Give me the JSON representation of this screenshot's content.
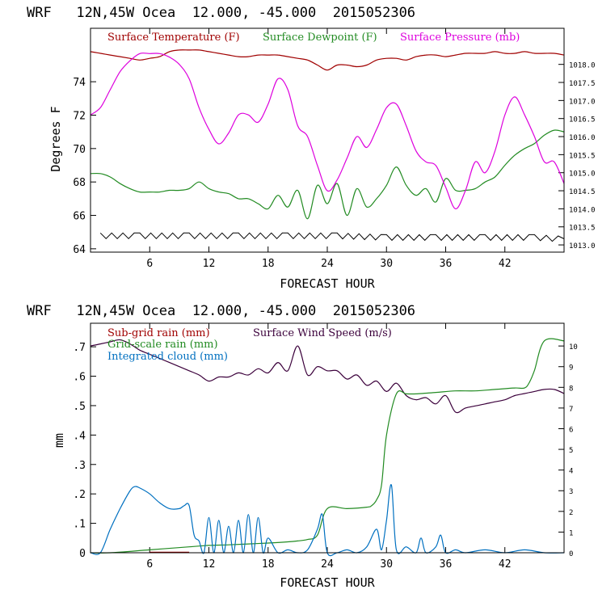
{
  "chart_data": [
    {
      "type": "line",
      "title": "WRF   12N,45W Ocea  12.000, -45.000  2015052306",
      "xlabel": "FORECAST HOUR",
      "ylabel": "Degrees F",
      "xlim": [
        0,
        48
      ],
      "ylim": [
        63.8,
        77.2
      ],
      "y2lim": [
        1012.8,
        1019.0
      ],
      "x_ticks": [
        6,
        12,
        18,
        24,
        30,
        36,
        42
      ],
      "y_ticks": [
        64,
        66,
        68,
        70,
        72,
        74
      ],
      "y2_ticks": [
        "1013.0",
        "1013.5",
        "1014.0",
        "1014.5",
        "1015.0",
        "1015.5",
        "1016.0",
        "1016.5",
        "1017.0",
        "1017.5",
        "1018.0"
      ],
      "legend": [
        "Surface Temperature (F)",
        "Surface Dewpoint (F)",
        "Surface Pressure (mb)"
      ],
      "series": [
        {
          "name": "Surface Temperature (F)",
          "color": "#a00000",
          "axis": "left",
          "x": [
            0,
            1,
            2,
            3,
            4,
            5,
            6,
            7,
            8,
            9,
            10,
            11,
            12,
            13,
            14,
            15,
            16,
            17,
            18,
            19,
            20,
            21,
            22,
            23,
            24,
            25,
            26,
            27,
            28,
            29,
            30,
            31,
            32,
            33,
            34,
            35,
            36,
            37,
            38,
            39,
            40,
            41,
            42,
            43,
            44,
            45,
            46,
            47,
            48
          ],
          "y": [
            75.8,
            75.7,
            75.6,
            75.5,
            75.4,
            75.3,
            75.4,
            75.5,
            75.8,
            75.9,
            75.9,
            75.9,
            75.8,
            75.7,
            75.6,
            75.5,
            75.5,
            75.6,
            75.6,
            75.6,
            75.5,
            75.4,
            75.3,
            75.0,
            74.7,
            75.0,
            75.0,
            74.9,
            75.0,
            75.3,
            75.4,
            75.4,
            75.3,
            75.5,
            75.6,
            75.6,
            75.5,
            75.6,
            75.7,
            75.7,
            75.7,
            75.8,
            75.7,
            75.7,
            75.8,
            75.7,
            75.7,
            75.7,
            75.6
          ]
        },
        {
          "name": "Surface Dewpoint (F)",
          "color": "#228b22",
          "axis": "left",
          "x": [
            0,
            1,
            2,
            3,
            4,
            5,
            6,
            7,
            8,
            9,
            10,
            11,
            12,
            13,
            14,
            15,
            16,
            17,
            18,
            19,
            20,
            21,
            22,
            23,
            24,
            25,
            26,
            27,
            28,
            29,
            30,
            31,
            32,
            33,
            34,
            35,
            36,
            37,
            38,
            39,
            40,
            41,
            42,
            43,
            44,
            45,
            46,
            47,
            48
          ],
          "y": [
            68.5,
            68.5,
            68.3,
            67.9,
            67.6,
            67.4,
            67.4,
            67.4,
            67.5,
            67.5,
            67.6,
            68.0,
            67.6,
            67.4,
            67.3,
            67.0,
            67.0,
            66.7,
            66.4,
            67.2,
            66.5,
            67.5,
            65.8,
            67.8,
            66.7,
            67.9,
            66.0,
            67.6,
            66.5,
            67.0,
            67.8,
            68.9,
            67.8,
            67.2,
            67.6,
            66.8,
            68.2,
            67.5,
            67.5,
            67.6,
            68.0,
            68.3,
            69.0,
            69.6,
            70.0,
            70.3,
            70.8,
            71.1,
            71.0
          ]
        },
        {
          "name": "Surface Pressure (mb)",
          "color": "#dd00dd",
          "axis": "right",
          "x": [
            0,
            1,
            2,
            3,
            4,
            5,
            6,
            7,
            8,
            9,
            10,
            11,
            12,
            13,
            14,
            15,
            16,
            17,
            18,
            19,
            20,
            21,
            22,
            23,
            24,
            25,
            26,
            27,
            28,
            29,
            30,
            31,
            32,
            33,
            34,
            35,
            36,
            37,
            38,
            39,
            40,
            41,
            42,
            43,
            44,
            45,
            46,
            47,
            48
          ],
          "y": [
            1016.6,
            1016.8,
            1017.3,
            1017.8,
            1018.1,
            1018.3,
            1018.3,
            1018.3,
            1018.2,
            1018.0,
            1017.6,
            1016.8,
            1016.2,
            1015.8,
            1016.1,
            1016.6,
            1016.6,
            1016.4,
            1016.9,
            1017.6,
            1017.3,
            1016.3,
            1016.0,
            1015.2,
            1014.5,
            1014.8,
            1015.4,
            1016.0,
            1015.7,
            1016.2,
            1016.8,
            1016.9,
            1016.3,
            1015.6,
            1015.3,
            1015.2,
            1014.6,
            1014.0,
            1014.5,
            1015.3,
            1015.0,
            1015.6,
            1016.6,
            1017.1,
            1016.6,
            1016.0,
            1015.3,
            1015.3,
            1014.7
          ]
        },
        {
          "name": "",
          "color": "#000000",
          "axis": "left",
          "style": "zigzag",
          "x": [
            1,
            5,
            10,
            15,
            20,
            25,
            30,
            35,
            40,
            45,
            48
          ],
          "y": [
            64.8,
            64.8,
            64.8,
            64.8,
            64.8,
            64.8,
            64.7,
            64.7,
            64.7,
            64.7,
            64.6
          ]
        }
      ]
    },
    {
      "type": "line",
      "title": "WRF   12N,45W Ocea  12.000, -45.000  2015052306",
      "xlabel": "FORECAST HOUR",
      "ylabel": "mm",
      "xlim": [
        0,
        48
      ],
      "ylim": [
        0,
        0.78
      ],
      "y2lim": [
        0,
        11.1
      ],
      "x_ticks": [
        6,
        12,
        18,
        24,
        30,
        36,
        42
      ],
      "y_ticks": [
        0,
        0.1,
        0.2,
        0.3,
        0.4,
        0.5,
        0.6,
        0.7
      ],
      "y_tick_labels": [
        "0",
        ".1",
        ".2",
        ".3",
        ".4",
        ".5",
        ".6",
        ".7"
      ],
      "y2_ticks": [
        0,
        1,
        2,
        3,
        4,
        5,
        6,
        7,
        8,
        9,
        10
      ],
      "legend": [
        "Sub-grid rain (mm)",
        "Surface Wind Speed (m/s)",
        "Grid-scale rain (mm)",
        "Integrated cloud (mm)"
      ],
      "series": [
        {
          "name": "Sub-grid rain (mm)",
          "color": "#a00000",
          "axis": "left",
          "x": [
            6,
            10
          ],
          "y": [
            0.002,
            0.002
          ]
        },
        {
          "name": "Surface Wind Speed (m/s)",
          "color": "#3b003b",
          "axis": "right",
          "x": [
            0,
            1,
            2,
            3,
            4,
            5,
            6,
            7,
            8,
            9,
            10,
            11,
            12,
            13,
            14,
            15,
            16,
            17,
            18,
            19,
            20,
            21,
            22,
            23,
            24,
            25,
            26,
            27,
            28,
            29,
            30,
            31,
            32,
            33,
            34,
            35,
            36,
            37,
            38,
            39,
            40,
            41,
            42,
            43,
            44,
            45,
            46,
            47,
            48
          ],
          "y": [
            10.0,
            10.1,
            10.2,
            10.3,
            10.1,
            9.8,
            9.6,
            9.4,
            9.2,
            9.0,
            8.8,
            8.6,
            8.3,
            8.5,
            8.5,
            8.7,
            8.6,
            8.9,
            8.7,
            9.2,
            8.8,
            10.0,
            8.6,
            9.0,
            8.8,
            8.8,
            8.4,
            8.6,
            8.1,
            8.3,
            7.8,
            8.2,
            7.6,
            7.4,
            7.5,
            7.2,
            7.6,
            6.8,
            7.0,
            7.1,
            7.2,
            7.3,
            7.4,
            7.6,
            7.7,
            7.8,
            7.9,
            7.9,
            7.7
          ]
        },
        {
          "name": "Grid-scale rain (mm)",
          "color": "#228b22",
          "axis": "left",
          "x": [
            0,
            2,
            6,
            10,
            12,
            14,
            16,
            18,
            20,
            21,
            22,
            23,
            24,
            26,
            28,
            28.5,
            29,
            29.5,
            30,
            31,
            32,
            33,
            35,
            37,
            39,
            41,
            43,
            44,
            44.5,
            45,
            46,
            48
          ],
          "y": [
            0,
            0,
            0.01,
            0.02,
            0.025,
            0.027,
            0.03,
            0.033,
            0.037,
            0.04,
            0.045,
            0.06,
            0.15,
            0.15,
            0.155,
            0.16,
            0.18,
            0.23,
            0.4,
            0.54,
            0.54,
            0.54,
            0.545,
            0.55,
            0.55,
            0.555,
            0.56,
            0.56,
            0.58,
            0.62,
            0.72,
            0.72
          ]
        },
        {
          "name": "Integrated cloud (mm)",
          "color": "#0070c0",
          "axis": "left",
          "x": [
            0,
            1,
            2,
            3,
            4,
            4.5,
            5,
            6,
            7,
            8,
            9,
            9.5,
            10,
            10.5,
            11,
            11.5,
            12,
            12.5,
            13,
            13.5,
            14,
            14.5,
            15,
            15.5,
            16,
            16.5,
            17,
            17.5,
            18,
            19,
            20,
            21,
            22,
            23,
            23.5,
            24,
            25,
            26,
            27,
            28,
            29,
            29.5,
            30,
            30.5,
            31,
            32,
            33,
            33.5,
            34,
            35,
            35.5,
            36,
            37,
            38,
            40,
            42,
            44,
            46,
            48
          ],
          "y": [
            0,
            0,
            0.08,
            0.15,
            0.21,
            0.225,
            0.22,
            0.2,
            0.17,
            0.15,
            0.15,
            0.16,
            0.16,
            0.06,
            0.04,
            0.0,
            0.12,
            0.0,
            0.11,
            0.0,
            0.09,
            0.0,
            0.11,
            0.0,
            0.13,
            0.0,
            0.12,
            0.0,
            0.05,
            0.0,
            0.01,
            0.0,
            0.01,
            0.08,
            0.13,
            0.0,
            0.0,
            0.01,
            0.0,
            0.02,
            0.08,
            0.01,
            0.11,
            0.23,
            0.01,
            0.02,
            0.0,
            0.05,
            0.0,
            0.02,
            0.06,
            0.0,
            0.01,
            0.0,
            0.01,
            0.0,
            0.01,
            0.0,
            0.0
          ]
        }
      ]
    }
  ]
}
